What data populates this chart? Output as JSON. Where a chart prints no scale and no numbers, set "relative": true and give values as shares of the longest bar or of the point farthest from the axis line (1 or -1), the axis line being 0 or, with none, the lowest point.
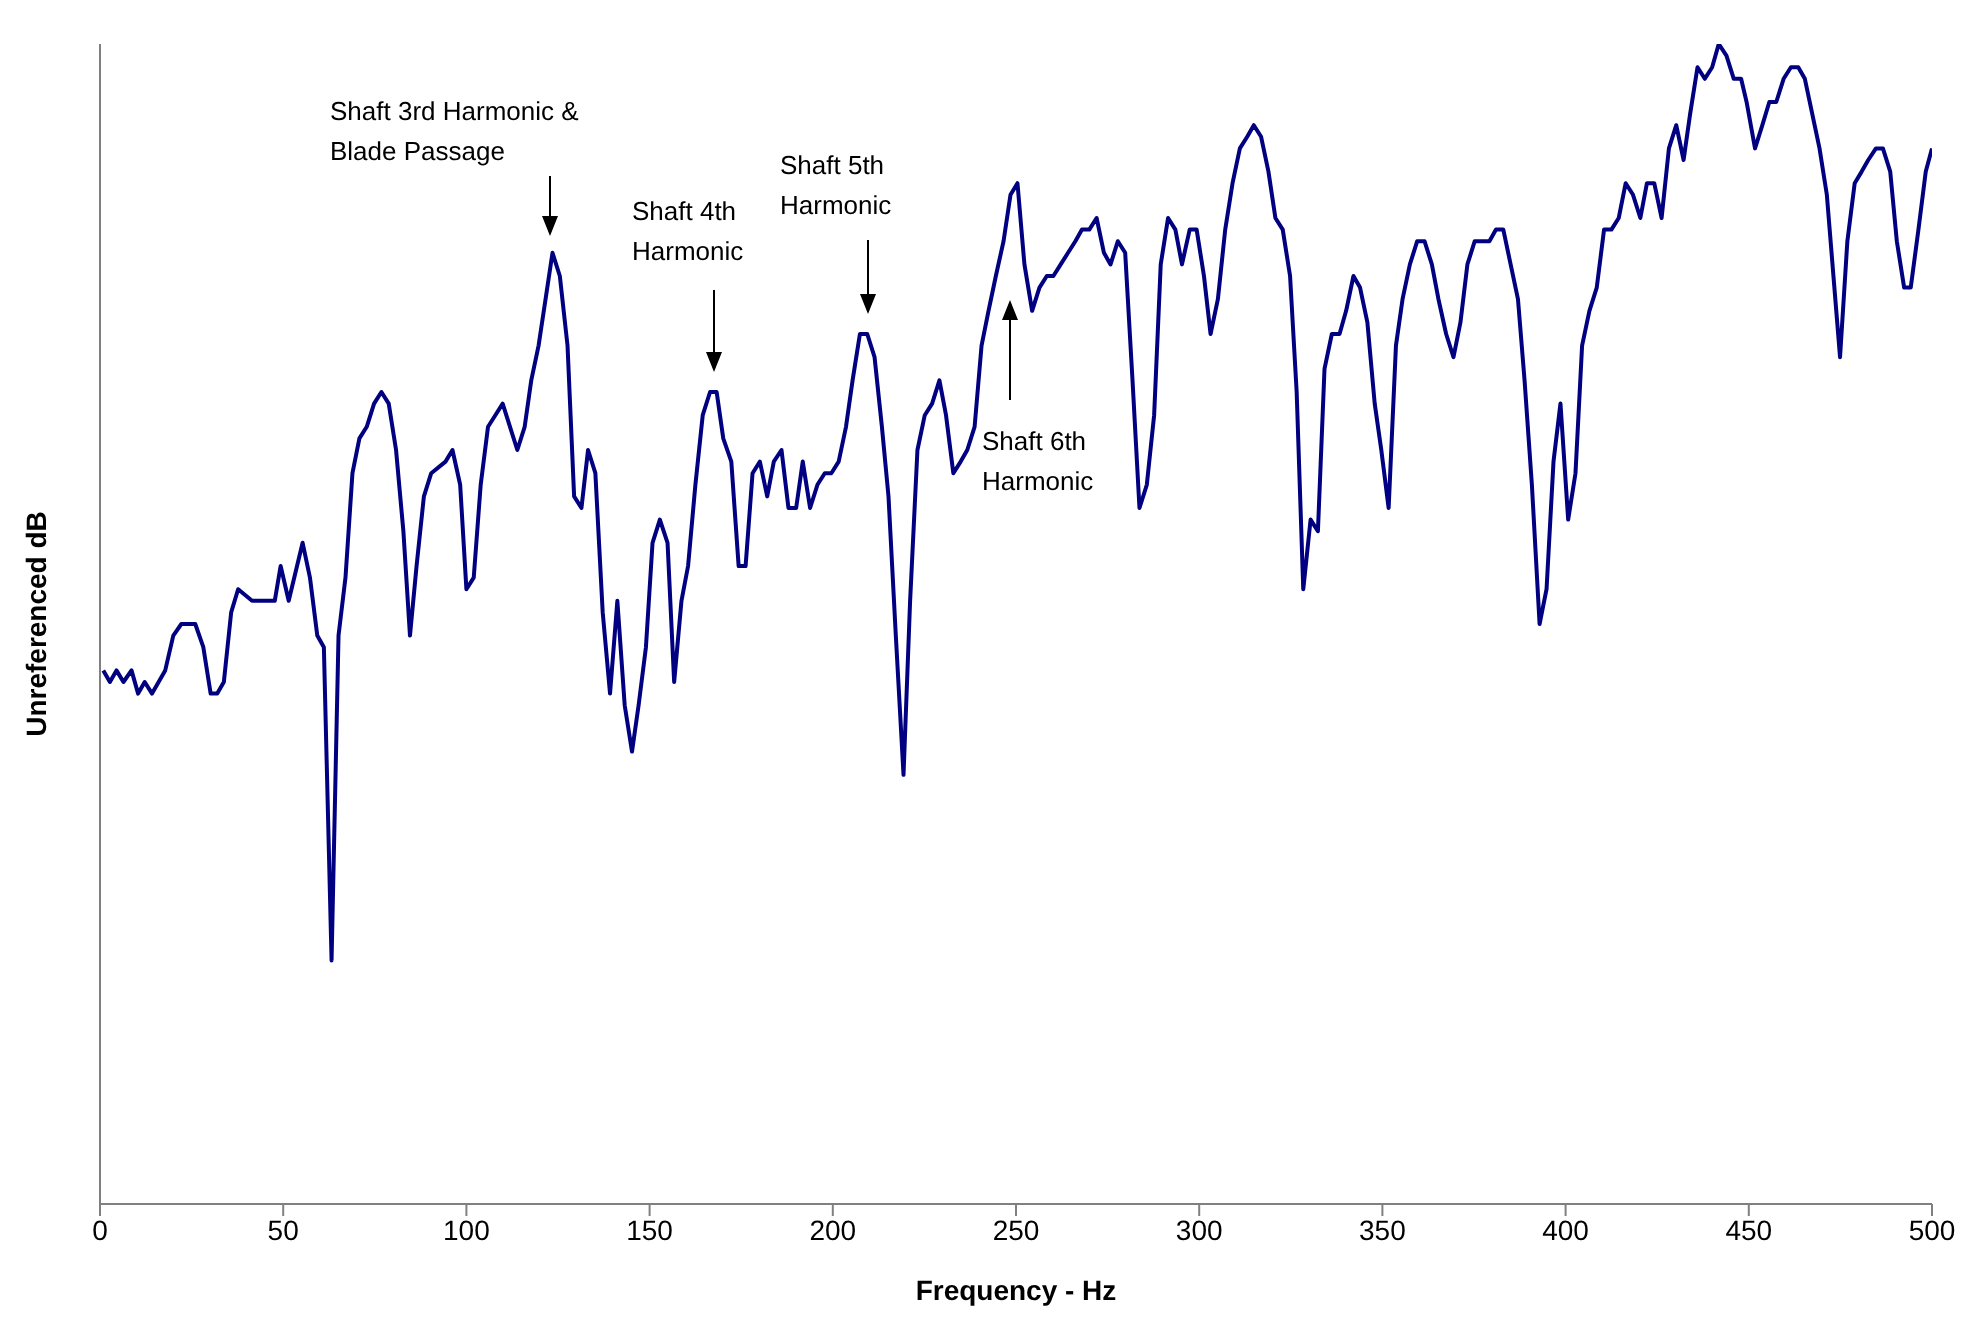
{
  "chart_data": {
    "type": "line",
    "relative": true,
    "xlabel": "Frequency - Hz",
    "ylabel": "Unreferenced dB",
    "xlim": [
      0,
      500
    ],
    "xticks": [
      0,
      50,
      100,
      150,
      200,
      250,
      300,
      350,
      400,
      450,
      500
    ],
    "grid": false,
    "legend": false,
    "marker": "none",
    "line_style": "solid",
    "annotations": [
      "Shaft 3rd Harmonic & Blade Passage",
      "Shaft 4th Harmonic",
      "Shaft 5th Harmonic",
      "Shaft 6th Harmonic"
    ],
    "series": [
      {
        "color": "#000080",
        "x": [
          0.9,
          2.7,
          4.5,
          6.4,
          8.6,
          10.4,
          12.2,
          14.2,
          17.8,
          20,
          22.2,
          24,
          26,
          28.2,
          30.2,
          32,
          33.8,
          35.8,
          37.7,
          41.5,
          43.7,
          45.9,
          47.7,
          49.3,
          51.5,
          55.3,
          57.3,
          59.3,
          61.1,
          63.2,
          65.1,
          67,
          68.9,
          70.8,
          72.8,
          74.8,
          76.8,
          78.8,
          80.8,
          82.8,
          84.6,
          86.4,
          88.4,
          90.4,
          94.3,
          96.2,
          98.3,
          100,
          102,
          103.9,
          105.9,
          107.9,
          109.9,
          111.9,
          113.9,
          115.9,
          117.7,
          119.7,
          121.6,
          123.5,
          125.5,
          127.6,
          129.4,
          131.4,
          133.2,
          135.2,
          137.2,
          139.2,
          141.2,
          143.2,
          145.2,
          147,
          149,
          150.8,
          152.8,
          154.9,
          156.7,
          158.7,
          160.5,
          162.5,
          164.5,
          166.5,
          168.3,
          170.1,
          172.3,
          174.3,
          176.2,
          178.1,
          180.1,
          182.1,
          183.9,
          186,
          187.9,
          190,
          191.8,
          193.8,
          195.8,
          197.8,
          199.6,
          201.6,
          203.6,
          205.4,
          207.4,
          209.4,
          211.4,
          213.4,
          215.2,
          217.2,
          219.3,
          221.1,
          223.1,
          225.1,
          227.1,
          229.1,
          230.9,
          232.9,
          234.9,
          236.7,
          238.7,
          240.6,
          242.5,
          244.5,
          246.6,
          248.5,
          250.4,
          252.3,
          254.4,
          256.4,
          258.4,
          260.2,
          262.2,
          264.2,
          266.2,
          268,
          270,
          272,
          274,
          275.8,
          277.8,
          279.8,
          281.8,
          283.7,
          285.7,
          287.7,
          289.5,
          291.5,
          293.5,
          295.3,
          297.4,
          299.3,
          301.3,
          303.1,
          305.1,
          307.1,
          309.1,
          311.1,
          313.1,
          314.9,
          316.9,
          318.9,
          320.8,
          322.8,
          324.8,
          326.6,
          328.4,
          330.4,
          332.4,
          334.2,
          336.2,
          338.3,
          340.1,
          342.1,
          343.9,
          345.9,
          347.9,
          349.7,
          351.7,
          353.7,
          355.5,
          357.5,
          359.5,
          361.5,
          363.5,
          365.3,
          367.4,
          369.4,
          371.3,
          373.2,
          375.2,
          377.2,
          379.2,
          381,
          383,
          385,
          387,
          388.8,
          390.8,
          392.9,
          394.8,
          396.7,
          398.6,
          400.7,
          402.7,
          404.5,
          406.5,
          408.5,
          410.5,
          412.5,
          414.5,
          416.4,
          418.4,
          420.4,
          422.2,
          424.2,
          426.2,
          428.2,
          430.2,
          432.2,
          434,
          436,
          438,
          440,
          441.8,
          443.9,
          445.9,
          447.9,
          449.4,
          451.7,
          453.7,
          455.6,
          457.5,
          459.5,
          461.5,
          463.5,
          465.3,
          467.3,
          469.3,
          471.3,
          473.1,
          474.9,
          476.9,
          478.9,
          480.8,
          482.6,
          484.7,
          486.6,
          488.6,
          490.4,
          492.4,
          494.2,
          496.3,
          498.3,
          500
        ],
        "values": [
          0.46,
          0.45,
          0.46,
          0.45,
          0.46,
          0.44,
          0.45,
          0.44,
          0.46,
          0.49,
          0.5,
          0.5,
          0.5,
          0.48,
          0.44,
          0.44,
          0.45,
          0.51,
          0.53,
          0.52,
          0.52,
          0.52,
          0.52,
          0.55,
          0.52,
          0.57,
          0.54,
          0.49,
          0.48,
          0.21,
          0.49,
          0.54,
          0.63,
          0.66,
          0.67,
          0.69,
          0.7,
          0.69,
          0.65,
          0.58,
          0.49,
          0.55,
          0.61,
          0.63,
          0.64,
          0.65,
          0.62,
          0.53,
          0.54,
          0.62,
          0.67,
          0.68,
          0.69,
          0.67,
          0.65,
          0.67,
          0.71,
          0.74,
          0.78,
          0.82,
          0.8,
          0.74,
          0.61,
          0.6,
          0.65,
          0.63,
          0.51,
          0.44,
          0.52,
          0.43,
          0.39,
          0.43,
          0.48,
          0.57,
          0.59,
          0.57,
          0.45,
          0.52,
          0.55,
          0.62,
          0.68,
          0.7,
          0.7,
          0.66,
          0.64,
          0.55,
          0.55,
          0.63,
          0.64,
          0.61,
          0.64,
          0.65,
          0.6,
          0.6,
          0.64,
          0.6,
          0.62,
          0.63,
          0.63,
          0.64,
          0.67,
          0.71,
          0.75,
          0.75,
          0.73,
          0.67,
          0.61,
          0.49,
          0.37,
          0.52,
          0.65,
          0.68,
          0.69,
          0.71,
          0.68,
          0.63,
          0.64,
          0.65,
          0.67,
          0.74,
          0.77,
          0.8,
          0.83,
          0.87,
          0.88,
          0.81,
          0.77,
          0.79,
          0.8,
          0.8,
          0.81,
          0.82,
          0.83,
          0.84,
          0.84,
          0.85,
          0.82,
          0.81,
          0.83,
          0.82,
          0.71,
          0.6,
          0.62,
          0.68,
          0.81,
          0.85,
          0.84,
          0.81,
          0.84,
          0.84,
          0.8,
          0.75,
          0.78,
          0.84,
          0.88,
          0.91,
          0.92,
          0.93,
          0.92,
          0.89,
          0.85,
          0.84,
          0.8,
          0.7,
          0.53,
          0.59,
          0.58,
          0.72,
          0.75,
          0.75,
          0.77,
          0.8,
          0.79,
          0.76,
          0.69,
          0.65,
          0.6,
          0.74,
          0.78,
          0.81,
          0.83,
          0.83,
          0.81,
          0.78,
          0.75,
          0.73,
          0.76,
          0.81,
          0.83,
          0.83,
          0.83,
          0.84,
          0.84,
          0.81,
          0.78,
          0.71,
          0.62,
          0.5,
          0.53,
          0.64,
          0.69,
          0.59,
          0.63,
          0.74,
          0.77,
          0.79,
          0.84,
          0.84,
          0.85,
          0.88,
          0.87,
          0.85,
          0.88,
          0.88,
          0.85,
          0.91,
          0.93,
          0.9,
          0.94,
          0.98,
          0.97,
          0.98,
          1,
          0.99,
          0.97,
          0.97,
          0.95,
          0.91,
          0.93,
          0.95,
          0.95,
          0.97,
          0.98,
          0.98,
          0.97,
          0.94,
          0.91,
          0.87,
          0.8,
          0.73,
          0.83,
          0.88,
          0.89,
          0.9,
          0.91,
          0.91,
          0.89,
          0.83,
          0.79,
          0.79,
          0.84,
          0.89,
          0.91
        ]
      }
    ]
  }
}
